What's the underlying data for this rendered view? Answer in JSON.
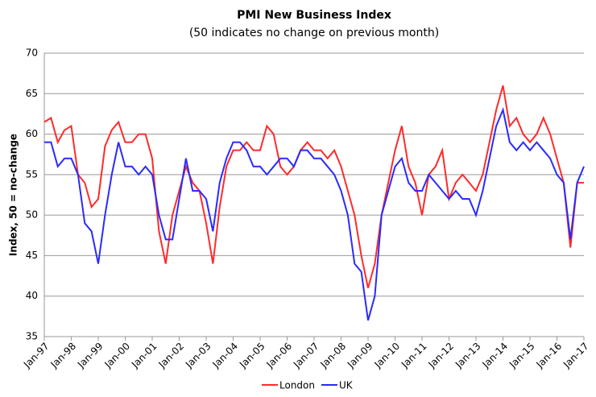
{
  "chart_data": {
    "type": "line",
    "title": "PMI New Business Index",
    "subtitle": "(50 indicates no change on previous month)",
    "y_label": "Index, 50 = no-change",
    "categories": [
      "Jan-97",
      null,
      null,
      null,
      "Jan-98",
      null,
      null,
      null,
      "Jan-99",
      null,
      null,
      null,
      "Jan-00",
      null,
      null,
      null,
      "Jan-01",
      null,
      null,
      null,
      "Jan-02",
      null,
      null,
      null,
      "Jan-03",
      null,
      null,
      null,
      "Jan-04",
      null,
      null,
      null,
      "Jan-05",
      null,
      null,
      null,
      "Jan-06",
      null,
      null,
      null,
      "Jan-07",
      null,
      null,
      null,
      "Jan-08",
      null,
      null,
      null,
      "Jan-09",
      null,
      null,
      null,
      "Jan-10",
      null,
      null,
      null,
      "Jan-11",
      null,
      null,
      null,
      "Jan-12",
      null,
      null,
      null,
      "Jan-13",
      null,
      null,
      null,
      "Jan-14",
      null,
      null,
      null,
      "Jan-15",
      null,
      null,
      null,
      "Jan-16",
      null,
      null,
      null,
      "Jan-17"
    ],
    "series": [
      {
        "name": "London",
        "color": "#ff2a2a",
        "values": [
          61.5,
          62,
          59,
          60.5,
          61,
          55,
          54,
          51,
          52,
          58.5,
          60.5,
          61.5,
          59,
          59,
          60,
          60,
          57,
          48,
          44,
          50,
          53,
          56,
          54,
          53,
          49,
          44,
          51,
          56,
          58,
          58,
          59,
          58,
          58,
          61,
          60,
          56,
          55,
          56,
          58,
          59,
          58,
          58,
          57,
          58,
          56,
          53,
          50,
          45,
          41,
          44,
          50,
          54,
          58,
          61,
          56,
          54,
          50,
          55,
          56,
          58,
          52,
          54,
          55,
          54,
          53,
          55,
          59,
          63,
          66,
          61,
          62,
          60,
          59,
          60,
          62,
          60,
          57,
          54,
          46,
          54,
          54
        ]
      },
      {
        "name": "UK",
        "color": "#2a2aff",
        "values": [
          59,
          59,
          56,
          57,
          57,
          55,
          49,
          48,
          44,
          50,
          55,
          59,
          56,
          56,
          55,
          56,
          55,
          50,
          47,
          47,
          52,
          57,
          53,
          53,
          52,
          48,
          54,
          57,
          59,
          59,
          58,
          56,
          56,
          55,
          56,
          57,
          57,
          56,
          58,
          58,
          57,
          57,
          56,
          55,
          53,
          50,
          44,
          43,
          37,
          40,
          50,
          53,
          56,
          57,
          54,
          53,
          53,
          55,
          54,
          53,
          52,
          53,
          52,
          52,
          50,
          53,
          57,
          61,
          63,
          59,
          58,
          59,
          58,
          59,
          58,
          57,
          55,
          54,
          47,
          54,
          56
        ]
      }
    ],
    "ylim": [
      35,
      70
    ],
    "yticks": [
      35,
      40,
      45,
      50,
      55,
      60,
      65,
      70
    ],
    "grid": true,
    "legend": "bottom"
  }
}
